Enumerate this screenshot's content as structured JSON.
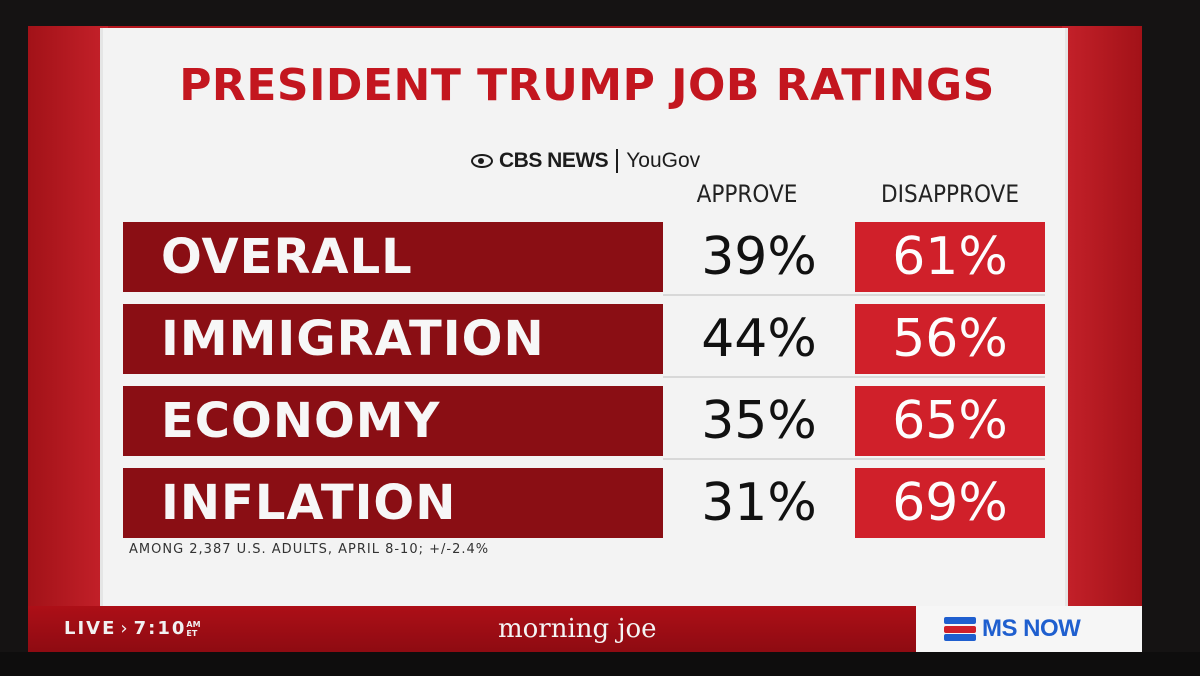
{
  "graphic": {
    "title": "PRESIDENT TRUMP JOB RATINGS",
    "sources": {
      "primary": "CBS NEWS",
      "secondary": "YouGov"
    },
    "columns": {
      "approve": "APPROVE",
      "disapprove": "DISAPPROVE"
    },
    "rows": [
      {
        "label": "OVERALL",
        "approve": "39%",
        "disapprove": "61%"
      },
      {
        "label": "IMMIGRATION",
        "approve": "44%",
        "disapprove": "56%"
      },
      {
        "label": "ECONOMY",
        "approve": "35%",
        "disapprove": "65%"
      },
      {
        "label": "INFLATION",
        "approve": "31%",
        "disapprove": "69%"
      }
    ],
    "footnote": "AMONG 2,387 U.S. ADULTS, APRIL 8-10; +/-2.4%"
  },
  "lower_third": {
    "live": "LIVE",
    "time": "7:10",
    "time_ampm": "AM",
    "time_zone": "ET",
    "show": "morning joe",
    "network": "MS NOW"
  },
  "colors": {
    "brand_red": "#c3161f",
    "label_red": "#8a0e14",
    "disapprove_red": "#d0202a",
    "network_blue": "#1f5fcf"
  },
  "icons": {
    "cbs_logo": "cbs-eye-icon",
    "network_logo": "ms-now-flag-icon"
  }
}
